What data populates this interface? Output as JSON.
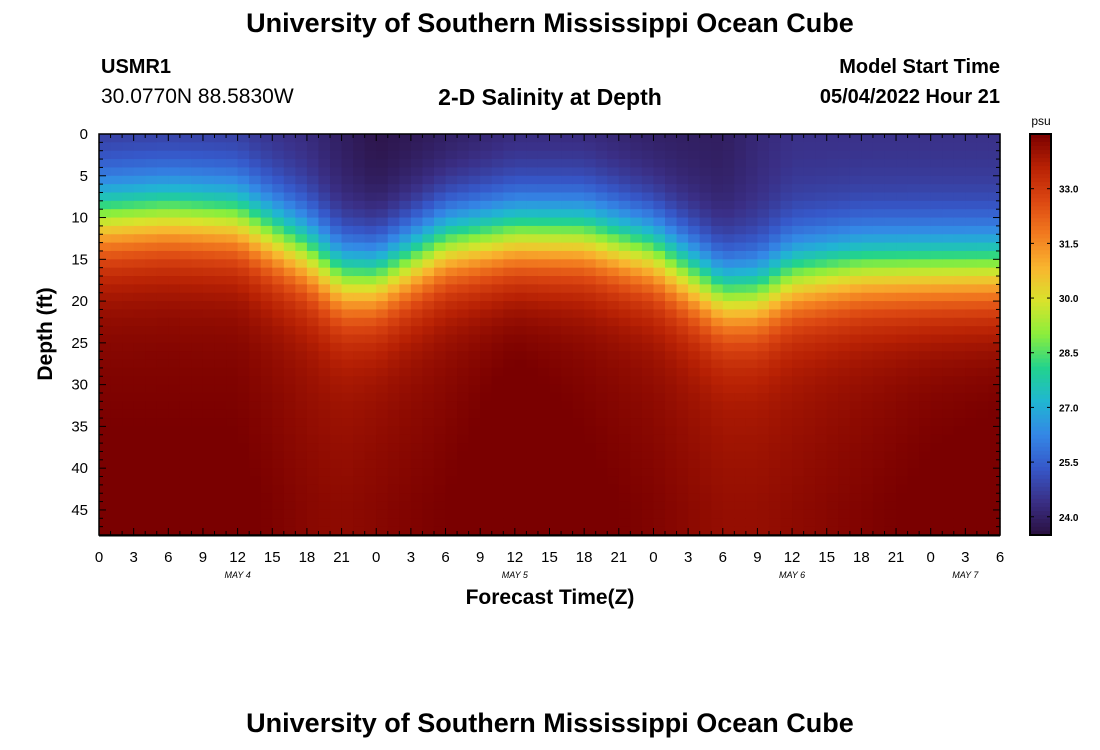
{
  "page": {
    "title": "University of Southern Mississippi Ocean Cube",
    "footer_title": "University of Southern Mississippi Ocean Cube"
  },
  "header": {
    "station_id": "USMR1",
    "station_coords": "30.0770N  88.5830W",
    "subtitle": "2-D Salinity at Depth",
    "model_start_label": "Model Start Time",
    "model_start_value": "05/04/2022 Hour 21"
  },
  "chart_data": {
    "type": "heatmap",
    "title": "2-D Salinity at Depth",
    "xlabel": "Forecast Time(Z)",
    "ylabel": "Depth (ft)",
    "x_ticks": [
      "0",
      "3",
      "6",
      "9",
      "12",
      "15",
      "18",
      "21",
      "0",
      "3",
      "6",
      "9",
      "12",
      "15",
      "18",
      "21",
      "0",
      "3",
      "6",
      "9",
      "12",
      "15",
      "18",
      "21",
      "0",
      "3",
      "6"
    ],
    "date_labels": [
      {
        "label": "MAY 4",
        "hour": 12
      },
      {
        "label": "MAY 5",
        "hour": 36
      },
      {
        "label": "MAY 6",
        "hour": 60
      },
      {
        "label": "MAY 7",
        "hour": 75
      }
    ],
    "xlim": [
      0,
      78
    ],
    "y_ticks": [
      0,
      5,
      10,
      15,
      20,
      25,
      30,
      35,
      40,
      45
    ],
    "ylim": [
      0,
      48
    ],
    "colorbar": {
      "unit": "psu",
      "ticks": [
        "33.0",
        "31.5",
        "30.0",
        "28.5",
        "27.0",
        "25.5",
        "24.0"
      ],
      "range": [
        23.5,
        34.5
      ]
    },
    "x": [
      0,
      6,
      12,
      18,
      21,
      24,
      30,
      36,
      42,
      48,
      54,
      57,
      60,
      66,
      72,
      78
    ],
    "halocline_depth_ft": [
      10,
      9.5,
      10,
      14,
      17,
      17,
      13,
      12,
      12,
      14,
      19,
      19,
      17,
      16,
      16,
      16
    ],
    "surface_salinity_psu": [
      24.4,
      24.4,
      24.4,
      24.2,
      23.9,
      23.6,
      23.8,
      24.1,
      24.1,
      23.9,
      23.9,
      24.2,
      24.4,
      24.4,
      24.4,
      24.4
    ],
    "bottom_salinity_psu": [
      34.2,
      34.2,
      34.2,
      33.9,
      33.8,
      33.9,
      34.1,
      34.4,
      34.2,
      34.0,
      33.7,
      33.7,
      33.8,
      34.0,
      34.2,
      34.3
    ]
  },
  "colors": {
    "colormap": [
      "#2a1040",
      "#3a2f86",
      "#3658c9",
      "#3487e6",
      "#20b6d2",
      "#22d38d",
      "#8bee3c",
      "#d9e32c",
      "#f9b52f",
      "#f27a1f",
      "#dc4712",
      "#b82104",
      "#7a0000"
    ]
  }
}
